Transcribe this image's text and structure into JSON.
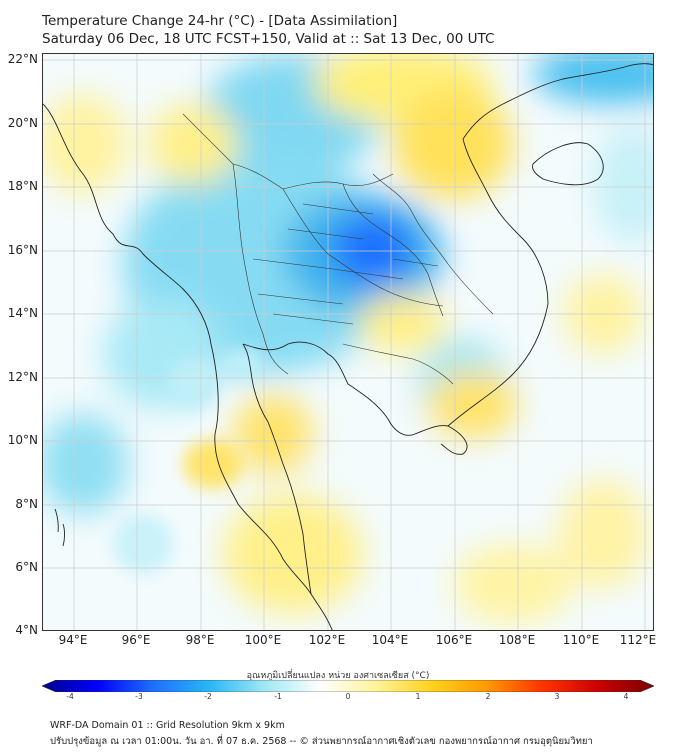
{
  "header": {
    "title_line1": "Temperature Change 24-hr (°C) - [Data Assimilation]",
    "title_line2": "Saturday 06 Dec, 18 UTC FCST+150, Valid at :: Sat 13 Dec, 00 UTC"
  },
  "map": {
    "lat_labels": [
      "22°N",
      "20°N",
      "18°N",
      "16°N",
      "14°N",
      "12°N",
      "10°N",
      "8°N",
      "6°N",
      "4°N"
    ],
    "lon_labels": [
      "94°E",
      "96°E",
      "98°E",
      "100°E",
      "102°E",
      "104°E",
      "106°E",
      "108°E",
      "110°E",
      "112°E"
    ],
    "extent": {
      "lon_min": 93,
      "lon_max": 112.3,
      "lat_min": 4,
      "lat_max": 22.2
    }
  },
  "colorbar": {
    "title": "อุณหภูมิเปลี่ยนแปลง หน่วย องศาเซลเซียส (°C)",
    "range": [
      -4,
      4
    ],
    "tick_labels": [
      "-4",
      "-3",
      "-2",
      "-1",
      "0",
      "1",
      "2",
      "3",
      "4"
    ],
    "colors": [
      "#00008b",
      "#0000ff",
      "#1e6fff",
      "#29b6f6",
      "#9ee8f5",
      "#ffffff",
      "#fff39a",
      "#ffd21f",
      "#ff9900",
      "#ff3300",
      "#cc0000",
      "#7a0000"
    ]
  },
  "footer": {
    "line1": "WRF-DA Domain 01 :: Grid Resolution 9km x 9km",
    "line2": "ปรับปรุงข้อมูล ณ เวลา 01:00น. วัน อา. ที่ 07 ธ.ค. 2568 -- © ส่วนพยากรณ์อากาศเชิงตัวเลข กองพยากรณ์อากาศ กรมอุตุนิยมวิทยา"
  }
}
